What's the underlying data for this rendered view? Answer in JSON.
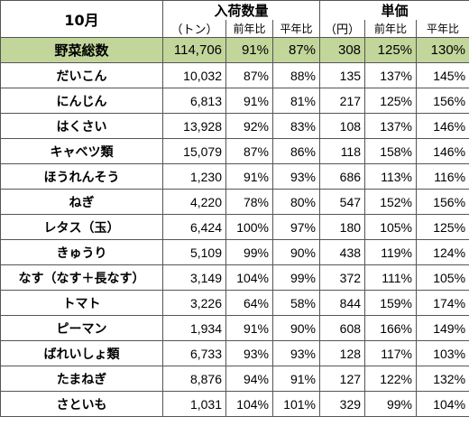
{
  "header": {
    "month": "10月",
    "arrivals": "入荷数量",
    "price": "単価",
    "unit_ton": "（トン）",
    "unit_yen": "（円）",
    "prev_year": "前年比",
    "avg_year": "平年比"
  },
  "total": {
    "name": "野菜総数",
    "qty": "114,706",
    "q_prev": "91%",
    "q_avg": "87%",
    "price": "308",
    "p_prev": "125%",
    "p_avg": "130%"
  },
  "rows": [
    {
      "name": "だいこん",
      "qty": "10,032",
      "q_prev": "87%",
      "q_avg": "88%",
      "price": "135",
      "p_prev": "137%",
      "p_avg": "145%"
    },
    {
      "name": "にんじん",
      "qty": "6,813",
      "q_prev": "91%",
      "q_avg": "81%",
      "price": "217",
      "p_prev": "125%",
      "p_avg": "156%"
    },
    {
      "name": "はくさい",
      "qty": "13,928",
      "q_prev": "92%",
      "q_avg": "83%",
      "price": "108",
      "p_prev": "137%",
      "p_avg": "146%"
    },
    {
      "name": "キャベツ類",
      "qty": "15,079",
      "q_prev": "87%",
      "q_avg": "86%",
      "price": "118",
      "p_prev": "158%",
      "p_avg": "146%"
    },
    {
      "name": "ほうれんそう",
      "qty": "1,230",
      "q_prev": "91%",
      "q_avg": "93%",
      "price": "686",
      "p_prev": "113%",
      "p_avg": "116%"
    },
    {
      "name": "ねぎ",
      "qty": "4,220",
      "q_prev": "78%",
      "q_avg": "80%",
      "price": "547",
      "p_prev": "152%",
      "p_avg": "156%"
    },
    {
      "name": "レタス（玉）",
      "qty": "6,424",
      "q_prev": "100%",
      "q_avg": "97%",
      "price": "180",
      "p_prev": "105%",
      "p_avg": "125%"
    },
    {
      "name": "きゅうり",
      "qty": "5,109",
      "q_prev": "99%",
      "q_avg": "90%",
      "price": "438",
      "p_prev": "119%",
      "p_avg": "124%"
    },
    {
      "name": "なす（なす＋長なす）",
      "qty": "3,149",
      "q_prev": "104%",
      "q_avg": "99%",
      "price": "372",
      "p_prev": "111%",
      "p_avg": "105%"
    },
    {
      "name": "トマト",
      "qty": "3,226",
      "q_prev": "64%",
      "q_avg": "58%",
      "price": "844",
      "p_prev": "159%",
      "p_avg": "174%"
    },
    {
      "name": "ピーマン",
      "qty": "1,934",
      "q_prev": "91%",
      "q_avg": "90%",
      "price": "608",
      "p_prev": "166%",
      "p_avg": "149%"
    },
    {
      "name": "ばれいしょ類",
      "qty": "6,733",
      "q_prev": "93%",
      "q_avg": "93%",
      "price": "128",
      "p_prev": "117%",
      "p_avg": "103%"
    },
    {
      "name": "たまねぎ",
      "qty": "8,876",
      "q_prev": "94%",
      "q_avg": "91%",
      "price": "127",
      "p_prev": "122%",
      "p_avg": "132%"
    },
    {
      "name": "さといも",
      "qty": "1,031",
      "q_prev": "104%",
      "q_avg": "101%",
      "price": "329",
      "p_prev": "99%",
      "p_avg": "104%"
    }
  ],
  "colors": {
    "total_bg": "#c2d69b",
    "border": "#555555"
  }
}
